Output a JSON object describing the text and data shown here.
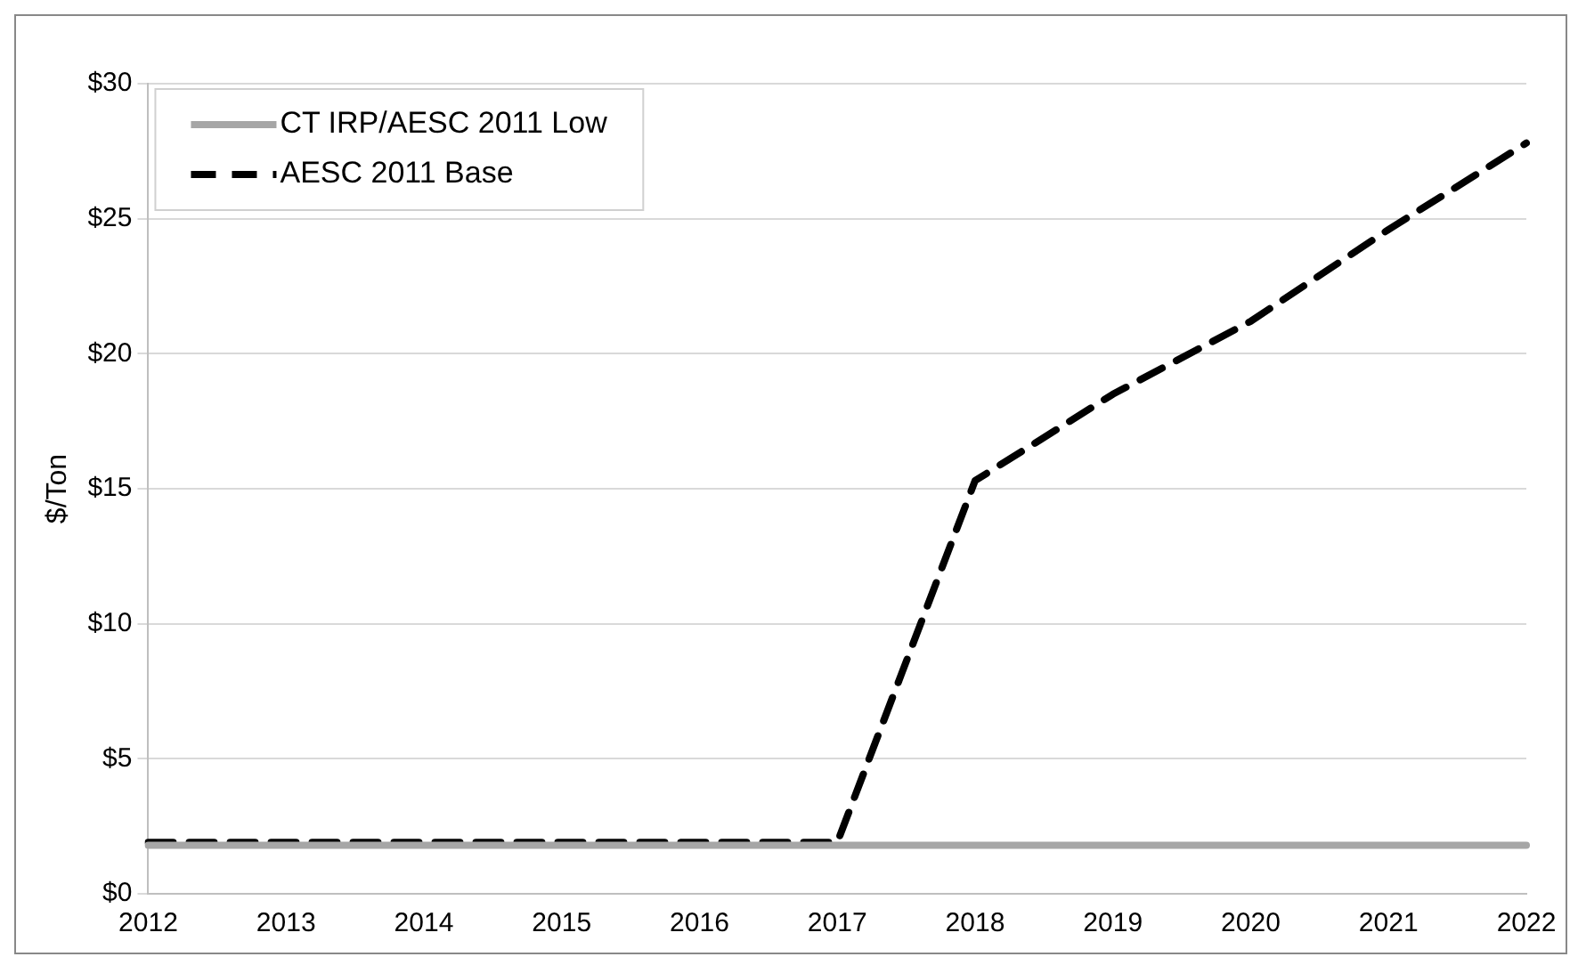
{
  "chart_data": {
    "type": "line",
    "ylabel": "$/Ton",
    "categories": [
      "2012",
      "2013",
      "2014",
      "2015",
      "2016",
      "2017",
      "2018",
      "2019",
      "2020",
      "2021",
      "2022"
    ],
    "series": [
      {
        "name": "CT IRP/AESC 2011 Low",
        "color": "#a6a6a6",
        "line_style": "solid",
        "values": [
          1.8,
          1.8,
          1.8,
          1.8,
          1.8,
          1.8,
          1.8,
          1.8,
          1.8,
          1.8,
          1.8
        ]
      },
      {
        "name": "AESC 2011 Base",
        "color": "#000000",
        "line_style": "dashed",
        "values": [
          1.9,
          1.9,
          1.9,
          1.9,
          1.9,
          1.9,
          15.3,
          18.5,
          21.2,
          24.6,
          27.8
        ]
      }
    ],
    "ylim": [
      0,
      30
    ],
    "yticks": [
      {
        "value": 0,
        "label": "$0"
      },
      {
        "value": 5,
        "label": "$5"
      },
      {
        "value": 10,
        "label": "$10"
      },
      {
        "value": 15,
        "label": "$15"
      },
      {
        "value": 20,
        "label": "$20"
      },
      {
        "value": 25,
        "label": "$25"
      },
      {
        "value": 30,
        "label": "$30"
      }
    ],
    "grid": "y",
    "legend": "top left",
    "marker": "none"
  }
}
